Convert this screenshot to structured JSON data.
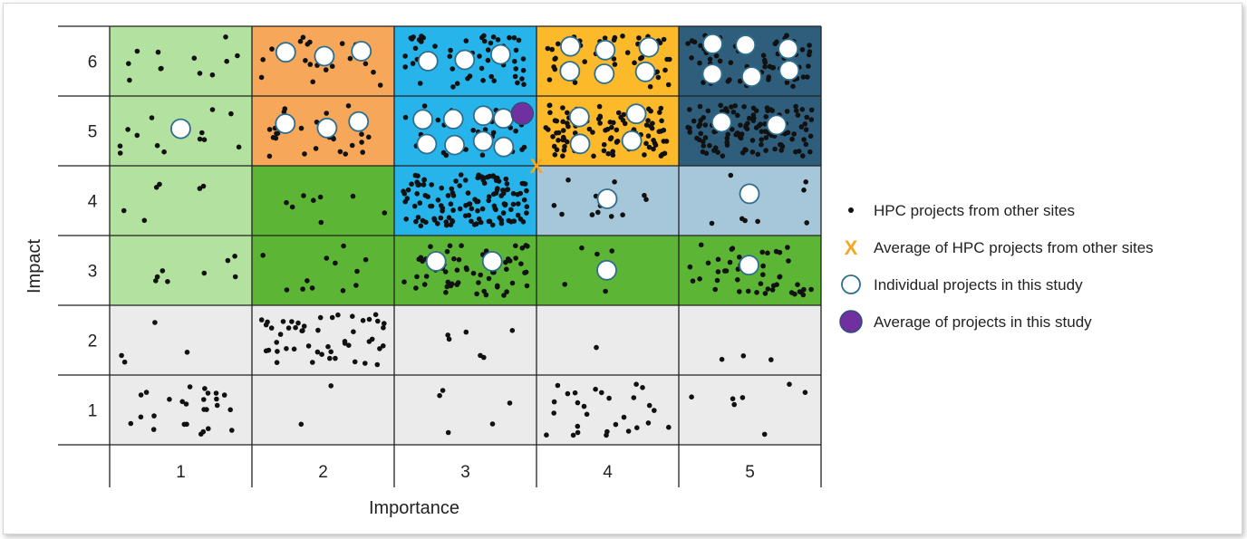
{
  "chart_data": {
    "type": "heatmap",
    "title": "",
    "xlabel": "Importance",
    "ylabel": "Impact",
    "x_categories": [
      "1",
      "2",
      "3",
      "4",
      "5"
    ],
    "y_categories": [
      "1",
      "2",
      "3",
      "4",
      "5",
      "6"
    ],
    "grid": true,
    "legend_position": "right",
    "colors": {
      "light_green": "#b3e19f",
      "orange": "#f6a75a",
      "blue": "#27b4ea",
      "amber": "#fcb92a",
      "navy": "#2f5e7d",
      "green": "#5cb535",
      "grey_blue": "#a6c6d9",
      "light_grey": "#ebebeb",
      "marker_purple": "#7030a0",
      "marker_x": "#f5a623"
    },
    "cells": [
      {
        "importance": 1,
        "impact": 6,
        "color": "#b3e19f",
        "other_site_projects": 12,
        "study_projects": 0
      },
      {
        "importance": 2,
        "impact": 6,
        "color": "#f6a75a",
        "other_site_projects": 20,
        "study_projects": 3
      },
      {
        "importance": 3,
        "impact": 6,
        "color": "#27b4ea",
        "other_site_projects": 55,
        "study_projects": 3
      },
      {
        "importance": 4,
        "impact": 6,
        "color": "#fcb92a",
        "other_site_projects": 45,
        "study_projects": 6
      },
      {
        "importance": 5,
        "impact": 6,
        "color": "#2f5e7d",
        "other_site_projects": 70,
        "study_projects": 6
      },
      {
        "importance": 1,
        "impact": 5,
        "color": "#b3e19f",
        "other_site_projects": 14,
        "study_projects": 1
      },
      {
        "importance": 2,
        "impact": 5,
        "color": "#f6a75a",
        "other_site_projects": 26,
        "study_projects": 3
      },
      {
        "importance": 3,
        "impact": 5,
        "color": "#27b4ea",
        "other_site_projects": 35,
        "study_projects": 8
      },
      {
        "importance": 4,
        "impact": 5,
        "color": "#fcb92a",
        "other_site_projects": 110,
        "study_projects": 4
      },
      {
        "importance": 5,
        "impact": 5,
        "color": "#2f5e7d",
        "other_site_projects": 120,
        "study_projects": 2
      },
      {
        "importance": 1,
        "impact": 4,
        "color": "#b3e19f",
        "other_site_projects": 6,
        "study_projects": 0
      },
      {
        "importance": 2,
        "impact": 4,
        "color": "#5cb535",
        "other_site_projects": 8,
        "study_projects": 0
      },
      {
        "importance": 3,
        "impact": 4,
        "color": "#27b4ea",
        "other_site_projects": 130,
        "study_projects": 0
      },
      {
        "importance": 4,
        "impact": 4,
        "color": "#a6c6d9",
        "other_site_projects": 12,
        "study_projects": 1
      },
      {
        "importance": 5,
        "impact": 4,
        "color": "#a6c6d9",
        "other_site_projects": 8,
        "study_projects": 1
      },
      {
        "importance": 1,
        "impact": 3,
        "color": "#b3e19f",
        "other_site_projects": 8,
        "study_projects": 0
      },
      {
        "importance": 2,
        "impact": 3,
        "color": "#5cb535",
        "other_site_projects": 12,
        "study_projects": 0
      },
      {
        "importance": 3,
        "impact": 3,
        "color": "#5cb535",
        "other_site_projects": 60,
        "study_projects": 2
      },
      {
        "importance": 4,
        "impact": 3,
        "color": "#5cb535",
        "other_site_projects": 5,
        "study_projects": 1
      },
      {
        "importance": 5,
        "impact": 3,
        "color": "#5cb535",
        "other_site_projects": 48,
        "study_projects": 1
      },
      {
        "importance": 1,
        "impact": 2,
        "color": "#ebebeb",
        "other_site_projects": 4,
        "study_projects": 0
      },
      {
        "importance": 2,
        "impact": 2,
        "color": "#ebebeb",
        "other_site_projects": 50,
        "study_projects": 0
      },
      {
        "importance": 3,
        "impact": 2,
        "color": "#ebebeb",
        "other_site_projects": 6,
        "study_projects": 0
      },
      {
        "importance": 4,
        "impact": 2,
        "color": "#ebebeb",
        "other_site_projects": 1,
        "study_projects": 0
      },
      {
        "importance": 5,
        "impact": 2,
        "color": "#ebebeb",
        "other_site_projects": 3,
        "study_projects": 0
      },
      {
        "importance": 1,
        "impact": 1,
        "color": "#ebebeb",
        "other_site_projects": 26,
        "study_projects": 0
      },
      {
        "importance": 2,
        "impact": 1,
        "color": "#ebebeb",
        "other_site_projects": 2,
        "study_projects": 0
      },
      {
        "importance": 3,
        "impact": 1,
        "color": "#ebebeb",
        "other_site_projects": 5,
        "study_projects": 0
      },
      {
        "importance": 4,
        "impact": 1,
        "color": "#ebebeb",
        "other_site_projects": 28,
        "study_projects": 0
      },
      {
        "importance": 5,
        "impact": 1,
        "color": "#ebebeb",
        "other_site_projects": 7,
        "study_projects": 0
      }
    ],
    "average_other_sites": {
      "importance": 3.5,
      "impact": 4.5
    },
    "average_this_study": {
      "importance": 3.4,
      "impact": 5.25
    },
    "legend": [
      {
        "marker": "dot",
        "label": "HPC projects from other sites"
      },
      {
        "marker": "x",
        "label": "Average of HPC projects from other sites"
      },
      {
        "marker": "open-circle",
        "label": "Individual projects in this study"
      },
      {
        "marker": "filled-circle",
        "label": "Average of projects in this study"
      }
    ],
    "x_marker_symbol": "X"
  }
}
